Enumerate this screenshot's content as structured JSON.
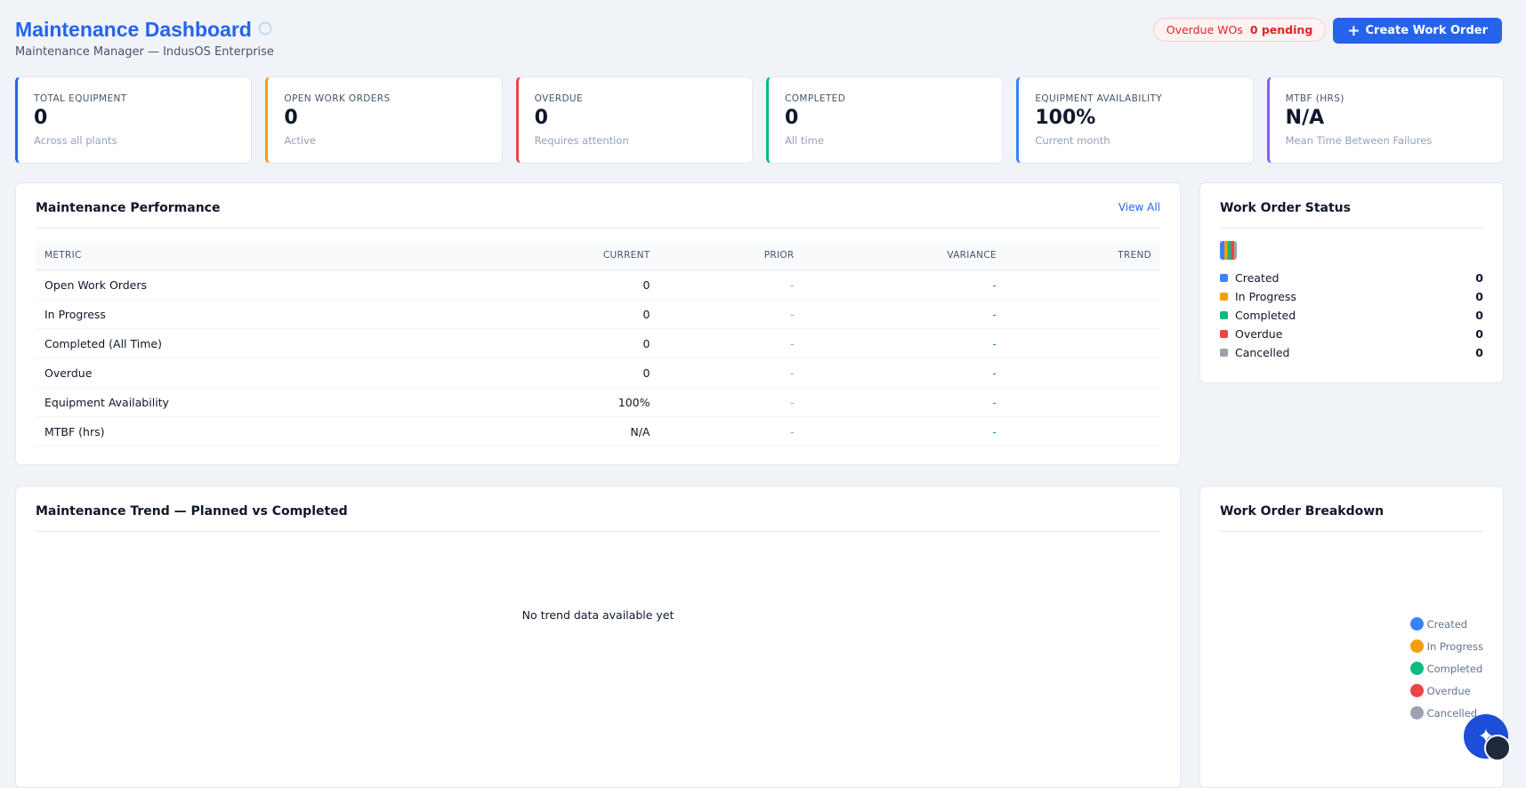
{
  "header": {
    "title": "Maintenance Dashboard",
    "subtitle": "Maintenance Manager — IndusOS Enterprise",
    "overdue_label": "Overdue WOs",
    "overdue_value": "0 pending",
    "create_button": "Create Work Order"
  },
  "kpis": [
    {
      "label": "TOTAL EQUIPMENT",
      "value": "0",
      "note": "Across all plants"
    },
    {
      "label": "OPEN WORK ORDERS",
      "value": "0",
      "note": "Active"
    },
    {
      "label": "OVERDUE",
      "value": "0",
      "note": "Requires attention"
    },
    {
      "label": "COMPLETED",
      "value": "0",
      "note": "All time"
    },
    {
      "label": "EQUIPMENT AVAILABILITY",
      "value": "100%",
      "note": "Current month"
    },
    {
      "label": "MTBF (HRS)",
      "value": "N/A",
      "note": "Mean Time Between Failures"
    }
  ],
  "performance": {
    "title": "Maintenance Performance",
    "view_all": "View All",
    "columns": [
      "METRIC",
      "CURRENT",
      "PRIOR",
      "VARIANCE",
      "TREND"
    ],
    "rows": [
      [
        "Open Work Orders",
        "0",
        "-",
        "-"
      ],
      [
        "In Progress",
        "0",
        "-",
        "-"
      ],
      [
        "Completed (All Time)",
        "0",
        "-",
        "-"
      ],
      [
        "Overdue",
        "0",
        "-",
        "-"
      ],
      [
        "Equipment Availability",
        "100%",
        "-",
        "-"
      ],
      [
        "MTBF (hrs)",
        "N/A",
        "-",
        "-"
      ]
    ]
  },
  "status": {
    "title": "Work Order Status",
    "items": [
      {
        "label": "Created",
        "value": "0"
      },
      {
        "label": "In Progress",
        "value": "0"
      },
      {
        "label": "Completed",
        "value": "0"
      },
      {
        "label": "Overdue",
        "value": "0"
      },
      {
        "label": "Cancelled",
        "value": "0"
      }
    ]
  },
  "trend": {
    "title": "Maintenance Trend — Planned vs Completed",
    "empty": "No trend data available yet"
  },
  "breakdown": {
    "title": "Work Order Breakdown",
    "legend": [
      "Created",
      "In Progress",
      "Completed",
      "Overdue",
      "Cancelled"
    ]
  }
}
